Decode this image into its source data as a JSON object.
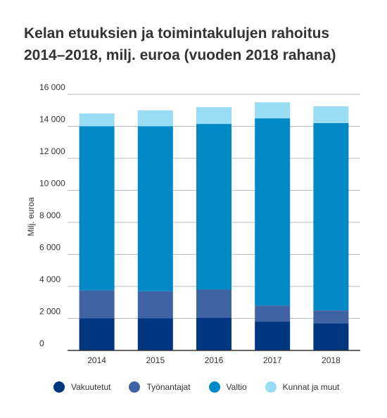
{
  "title_lines": [
    "Kelan etuuksien ja toimintakulujen rahoitus",
    "2014–2018, milj. euroa (vuoden 2018 rahana)"
  ],
  "chart_data": {
    "type": "bar",
    "stacked": true,
    "title": "Kelan etuuksien ja toimintakulujen rahoitus 2014–2018, milj. euroa (vuoden 2018 rahana)",
    "xlabel": "",
    "ylabel": "Milj. euroa",
    "ylim": [
      0,
      16000
    ],
    "yticks": [
      0,
      2000,
      4000,
      6000,
      8000,
      10000,
      12000,
      14000,
      16000
    ],
    "ytick_labels": [
      "0",
      "2 000",
      "4 000",
      "6 000",
      "8 000",
      "10 000",
      "12 000",
      "14 000",
      "16 000"
    ],
    "grid": true,
    "legend_position": "bottom",
    "categories": [
      "2014",
      "2015",
      "2016",
      "2017",
      "2018"
    ],
    "series": [
      {
        "name": "Vakuutetut",
        "color": "#003580",
        "values": [
          2000,
          2000,
          2050,
          1800,
          1700
        ]
      },
      {
        "name": "Työnantajat",
        "color": "#3F63A3",
        "values": [
          1750,
          1700,
          1750,
          1000,
          800
        ]
      },
      {
        "name": "Valtio",
        "color": "#0088C7",
        "values": [
          10250,
          10300,
          10350,
          11700,
          11700
        ]
      },
      {
        "name": "Kunnat ja muut",
        "color": "#99DDF5",
        "values": [
          800,
          1000,
          1050,
          1000,
          1050
        ]
      }
    ]
  }
}
